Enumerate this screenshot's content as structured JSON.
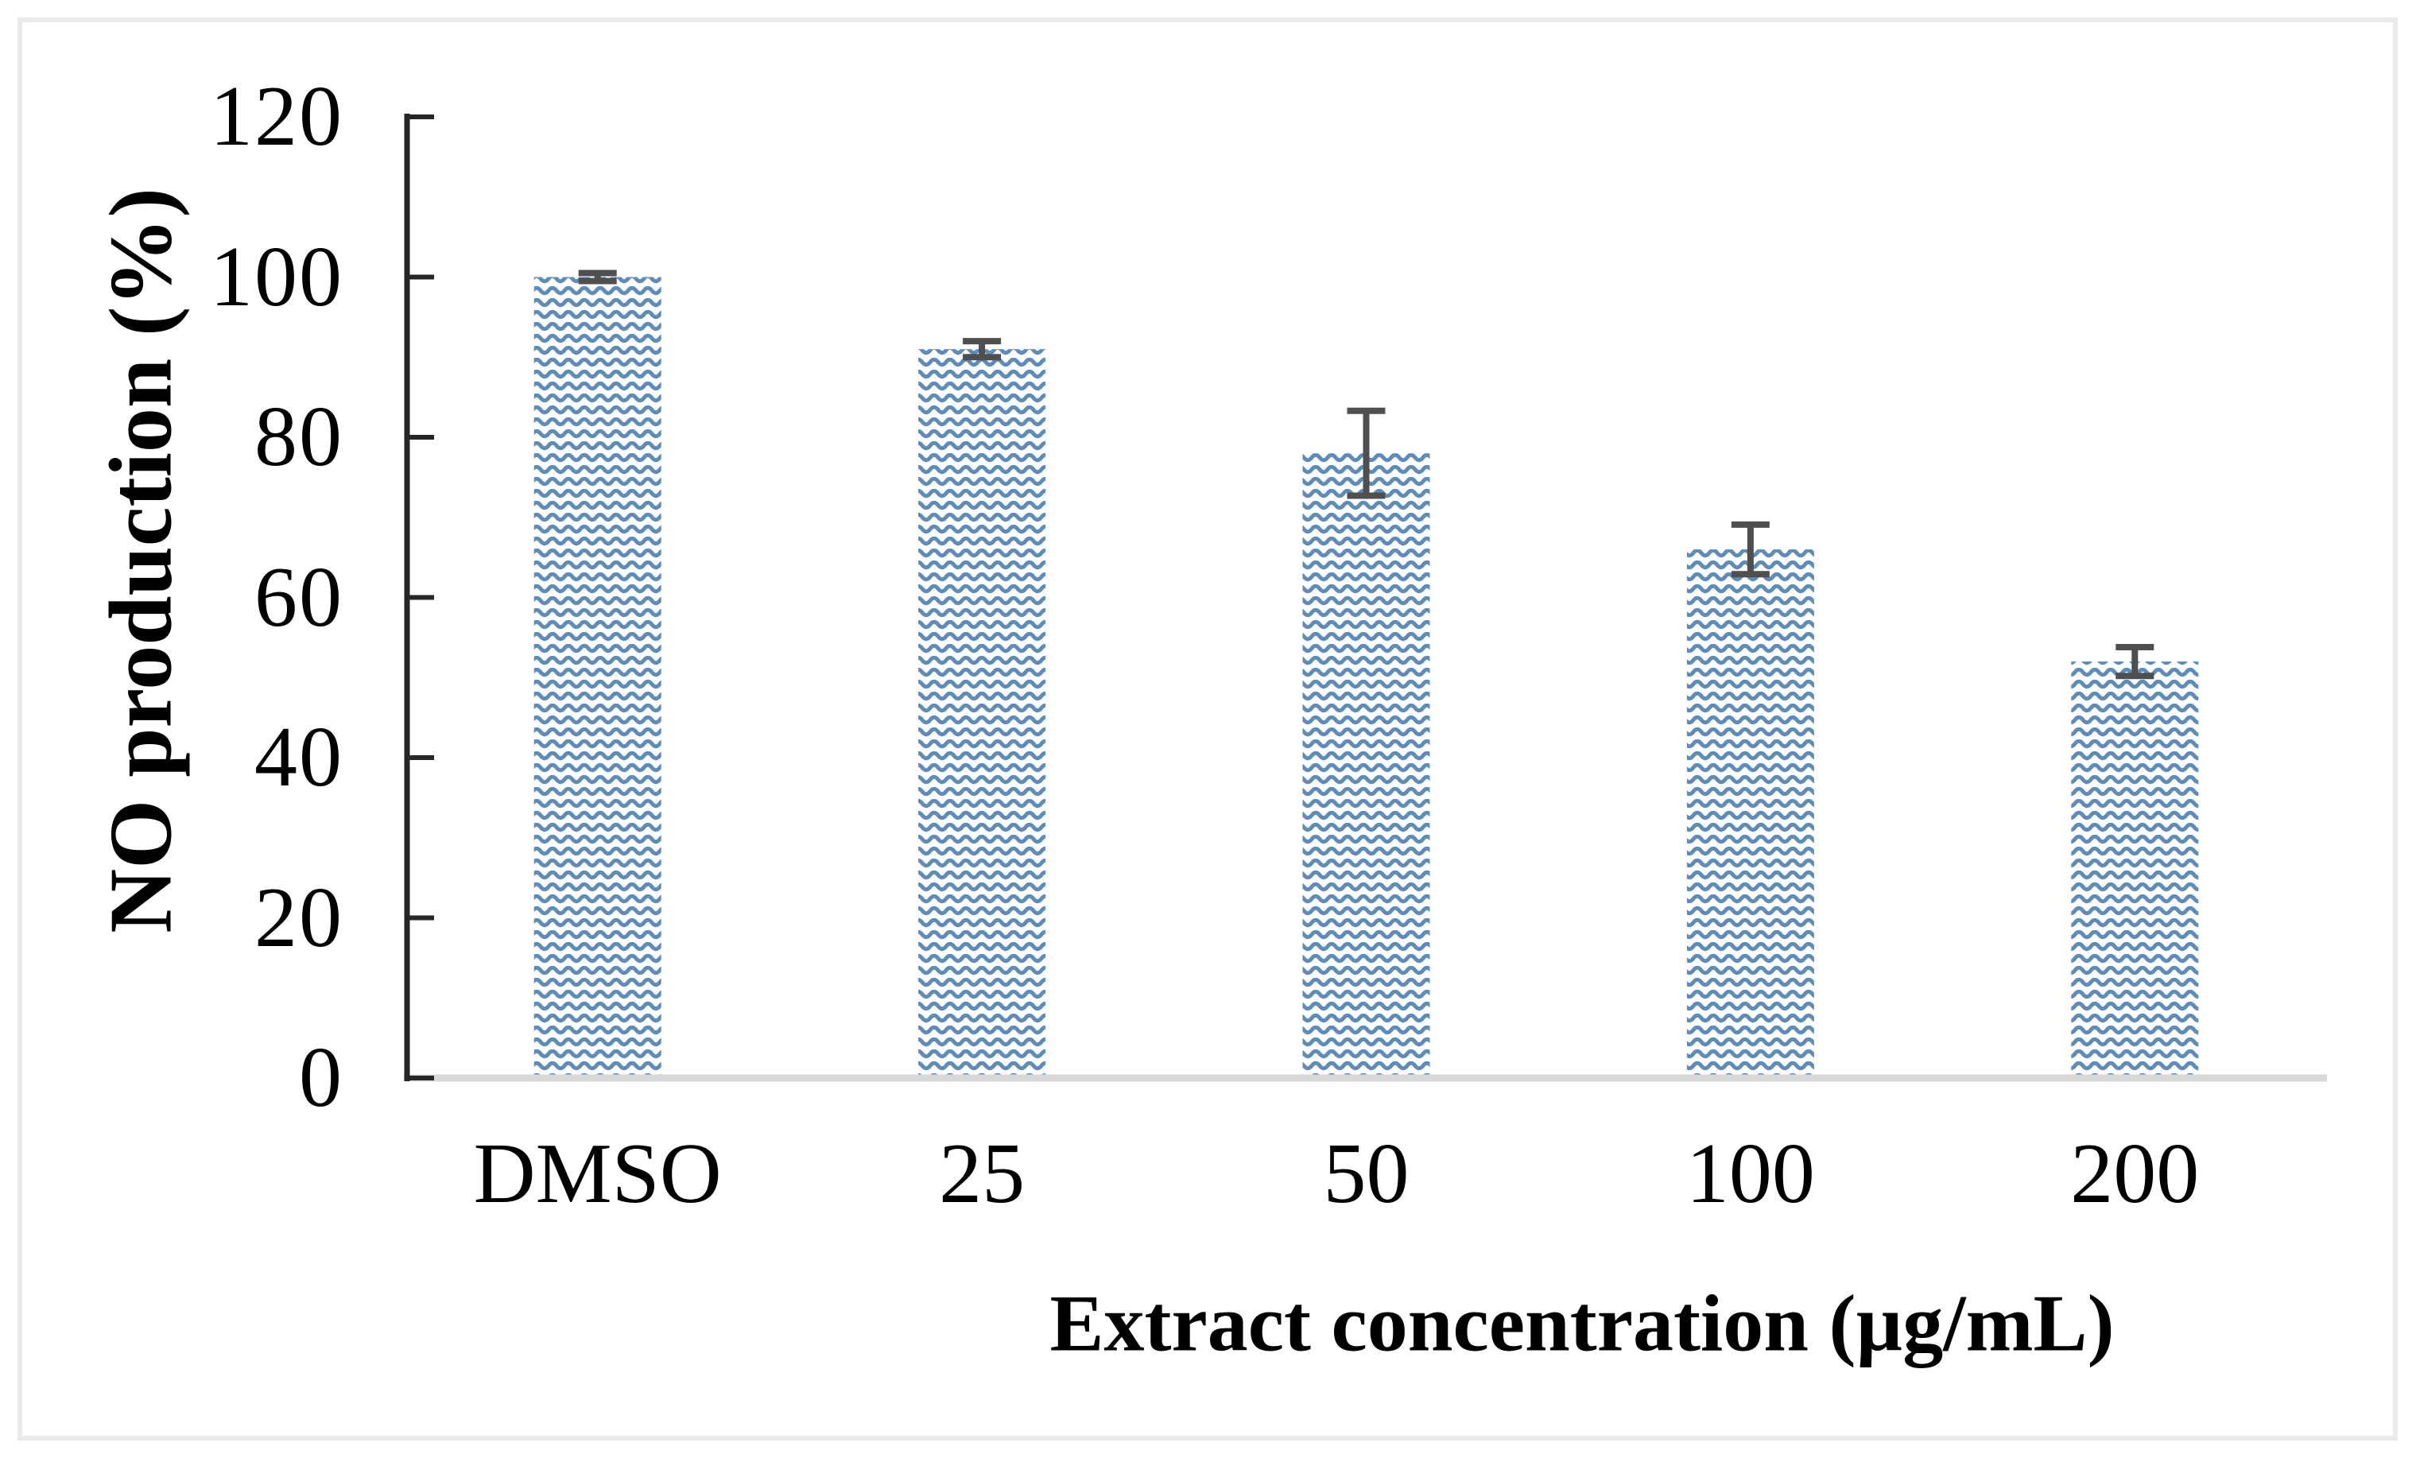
{
  "figure": {
    "background_color": "#ffffff",
    "frame_color": "#eaeaea"
  },
  "chart_data": {
    "type": "bar",
    "categories": [
      "DMSO",
      "25",
      "50",
      "100",
      "200"
    ],
    "values": [
      100,
      91,
      78,
      66,
      52
    ],
    "errors_plus": [
      0.5,
      1.0,
      5.3,
      3.1,
      1.8
    ],
    "errors_minus": [
      0.5,
      1.0,
      5.3,
      3.1,
      1.8
    ],
    "title": "",
    "xlabel": "Extract concentration (µg/mL)",
    "ylabel": "NO production (%)",
    "ylim": [
      0,
      120
    ],
    "yticks": [
      0,
      20,
      40,
      60,
      80,
      100,
      120
    ],
    "grid": false,
    "legend_position": "none",
    "bar_fill_pattern": "wave",
    "bar_wave_color": "#5e8cba",
    "bar_background_color": "#ffffff",
    "error_bar_color": "#4f4f4f",
    "y_axis_color": "#262626",
    "x_baseline_color": "#d9d9d9"
  }
}
